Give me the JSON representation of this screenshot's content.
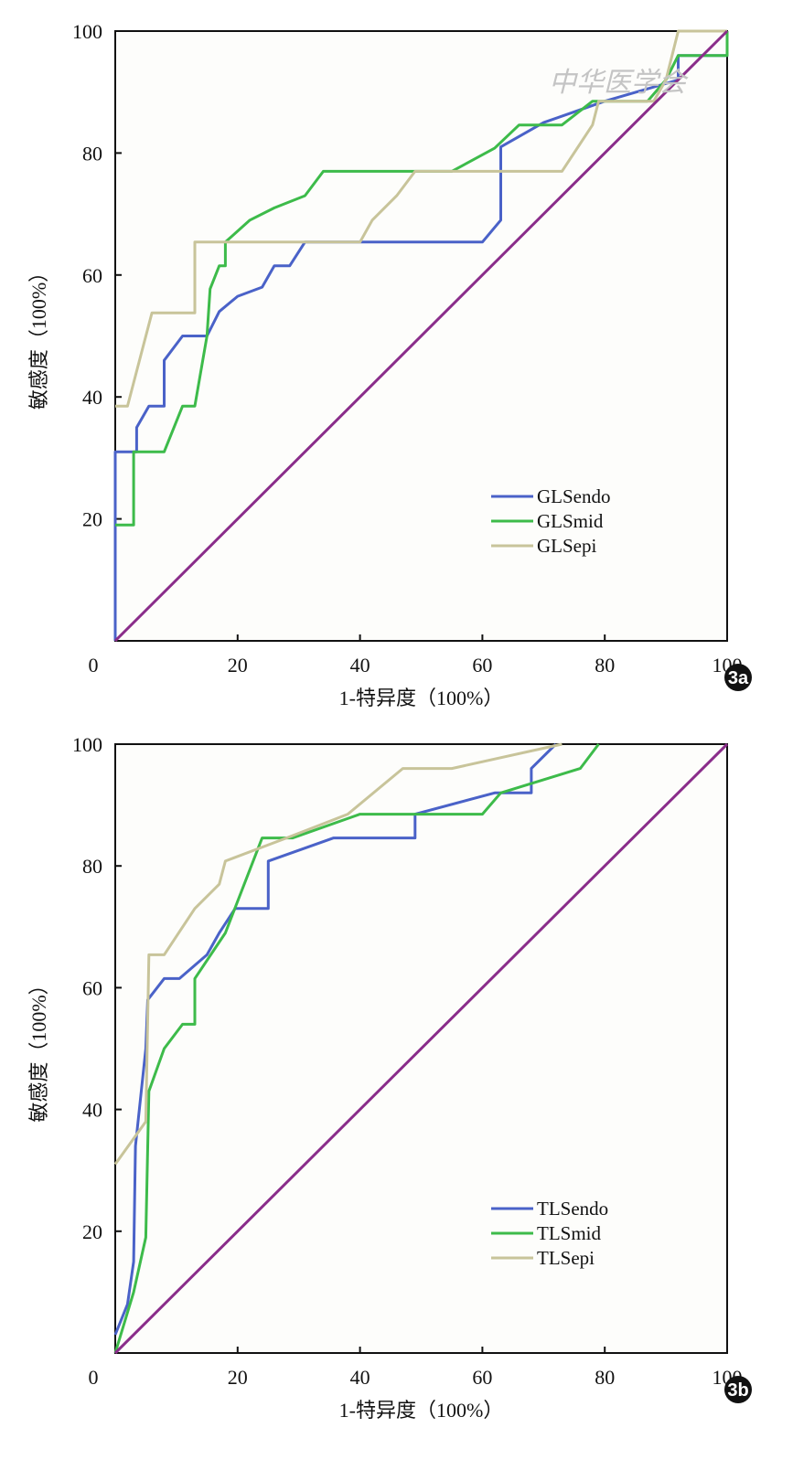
{
  "watermark": "中华医学会",
  "chart_data": [
    {
      "type": "line",
      "panel_label": "3a",
      "xlabel": "1-特异度（100%）",
      "ylabel": "敏感度（100%）",
      "xlim": [
        0,
        100
      ],
      "ylim": [
        0,
        100
      ],
      "xticks": [
        "0",
        "20",
        "40",
        "60",
        "80",
        "100"
      ],
      "yticks": [
        "20",
        "40",
        "60",
        "80",
        "100"
      ],
      "grid": false,
      "legend_position": "bottom-right",
      "series": [
        {
          "name": "GLSendo",
          "color": "#4a62c8",
          "points": [
            [
              0,
              0
            ],
            [
              0,
              31
            ],
            [
              3.5,
              31
            ],
            [
              3.5,
              35
            ],
            [
              5.5,
              38.5
            ],
            [
              8,
              38.5
            ],
            [
              8,
              46
            ],
            [
              11,
              50
            ],
            [
              15,
              50
            ],
            [
              17,
              54
            ],
            [
              20,
              56.5
            ],
            [
              24,
              58
            ],
            [
              26,
              61.5
            ],
            [
              28.5,
              61.5
            ],
            [
              31,
              65.4
            ],
            [
              60,
              65.4
            ],
            [
              63,
              69
            ],
            [
              63,
              81
            ],
            [
              70,
              85
            ],
            [
              80,
              88.5
            ],
            [
              92,
              92
            ],
            [
              92,
              96
            ],
            [
              100,
              96
            ],
            [
              100,
              100
            ]
          ]
        },
        {
          "name": "GLSmid",
          "color": "#3dbb4a",
          "points": [
            [
              0,
              19
            ],
            [
              3,
              19
            ],
            [
              3,
              31
            ],
            [
              8,
              31
            ],
            [
              11,
              38.5
            ],
            [
              13,
              38.5
            ],
            [
              15,
              50
            ],
            [
              15.5,
              57.7
            ],
            [
              17,
              61.5
            ],
            [
              18,
              61.5
            ],
            [
              18,
              65.4
            ],
            [
              22,
              69
            ],
            [
              26,
              71
            ],
            [
              31,
              73
            ],
            [
              34,
              77
            ],
            [
              55,
              77
            ],
            [
              62,
              80.8
            ],
            [
              66,
              84.6
            ],
            [
              73,
              84.6
            ],
            [
              78,
              88.5
            ],
            [
              87,
              88.5
            ],
            [
              90,
              92
            ],
            [
              92,
              96
            ],
            [
              100,
              96
            ],
            [
              100,
              100
            ]
          ]
        },
        {
          "name": "GLSepi",
          "color": "#c8c49a",
          "points": [
            [
              0,
              38.5
            ],
            [
              2,
              38.5
            ],
            [
              6,
              53.8
            ],
            [
              13,
              53.8
            ],
            [
              13,
              65.4
            ],
            [
              40,
              65.4
            ],
            [
              42,
              69
            ],
            [
              46,
              73
            ],
            [
              49,
              77
            ],
            [
              73,
              77
            ],
            [
              78,
              84.6
            ],
            [
              79,
              88.5
            ],
            [
              88,
              88.5
            ],
            [
              90,
              92
            ],
            [
              92,
              100
            ],
            [
              100,
              100
            ]
          ]
        },
        {
          "name": "reference",
          "color": "#8a2d8a",
          "points": [
            [
              0,
              0
            ],
            [
              100,
              100
            ]
          ]
        }
      ]
    },
    {
      "type": "line",
      "panel_label": "3b",
      "xlabel": "1-特异度（100%）",
      "ylabel": "敏感度（100%）",
      "xlim": [
        0,
        100
      ],
      "ylim": [
        0,
        100
      ],
      "xticks": [
        "0",
        "20",
        "40",
        "60",
        "80",
        "100"
      ],
      "yticks": [
        "20",
        "40",
        "60",
        "80",
        "100"
      ],
      "grid": false,
      "legend_position": "bottom-right",
      "series": [
        {
          "name": "TLSendo",
          "color": "#4a62c8",
          "points": [
            [
              0,
              3
            ],
            [
              2,
              8
            ],
            [
              3,
              15
            ],
            [
              3.3,
              34
            ],
            [
              5,
              50
            ],
            [
              5.3,
              58
            ],
            [
              8,
              61.5
            ],
            [
              10.5,
              61.5
            ],
            [
              15,
              65.4
            ],
            [
              17,
              69
            ],
            [
              19.6,
              73
            ],
            [
              25,
              73
            ],
            [
              25,
              80.8
            ],
            [
              35.7,
              84.6
            ],
            [
              49,
              84.6
            ],
            [
              49,
              88.5
            ],
            [
              62,
              92
            ],
            [
              68,
              92
            ],
            [
              68,
              96
            ],
            [
              72,
              100
            ]
          ]
        },
        {
          "name": "TLSmid",
          "color": "#3dbb4a",
          "points": [
            [
              0,
              0
            ],
            [
              3,
              10
            ],
            [
              5,
              19
            ],
            [
              5.5,
              43
            ],
            [
              8,
              50
            ],
            [
              11,
              54
            ],
            [
              13,
              54
            ],
            [
              13,
              61.5
            ],
            [
              18,
              69
            ],
            [
              24,
              84.6
            ],
            [
              29,
              84.6
            ],
            [
              40,
              88.5
            ],
            [
              60,
              88.5
            ],
            [
              63,
              92
            ],
            [
              76,
              96
            ],
            [
              79,
              100
            ]
          ]
        },
        {
          "name": "TLSepi",
          "color": "#c8c49a",
          "points": [
            [
              0,
              31
            ],
            [
              5,
              38
            ],
            [
              5.5,
              65.4
            ],
            [
              8,
              65.4
            ],
            [
              13,
              73
            ],
            [
              17,
              77
            ],
            [
              18,
              80.8
            ],
            [
              28,
              84.6
            ],
            [
              38,
              88.5
            ],
            [
              47,
              96
            ],
            [
              55,
              96
            ],
            [
              73,
              100
            ]
          ]
        },
        {
          "name": "reference",
          "color": "#8a2d8a",
          "points": [
            [
              0,
              0
            ],
            [
              100,
              100
            ]
          ]
        }
      ]
    }
  ]
}
